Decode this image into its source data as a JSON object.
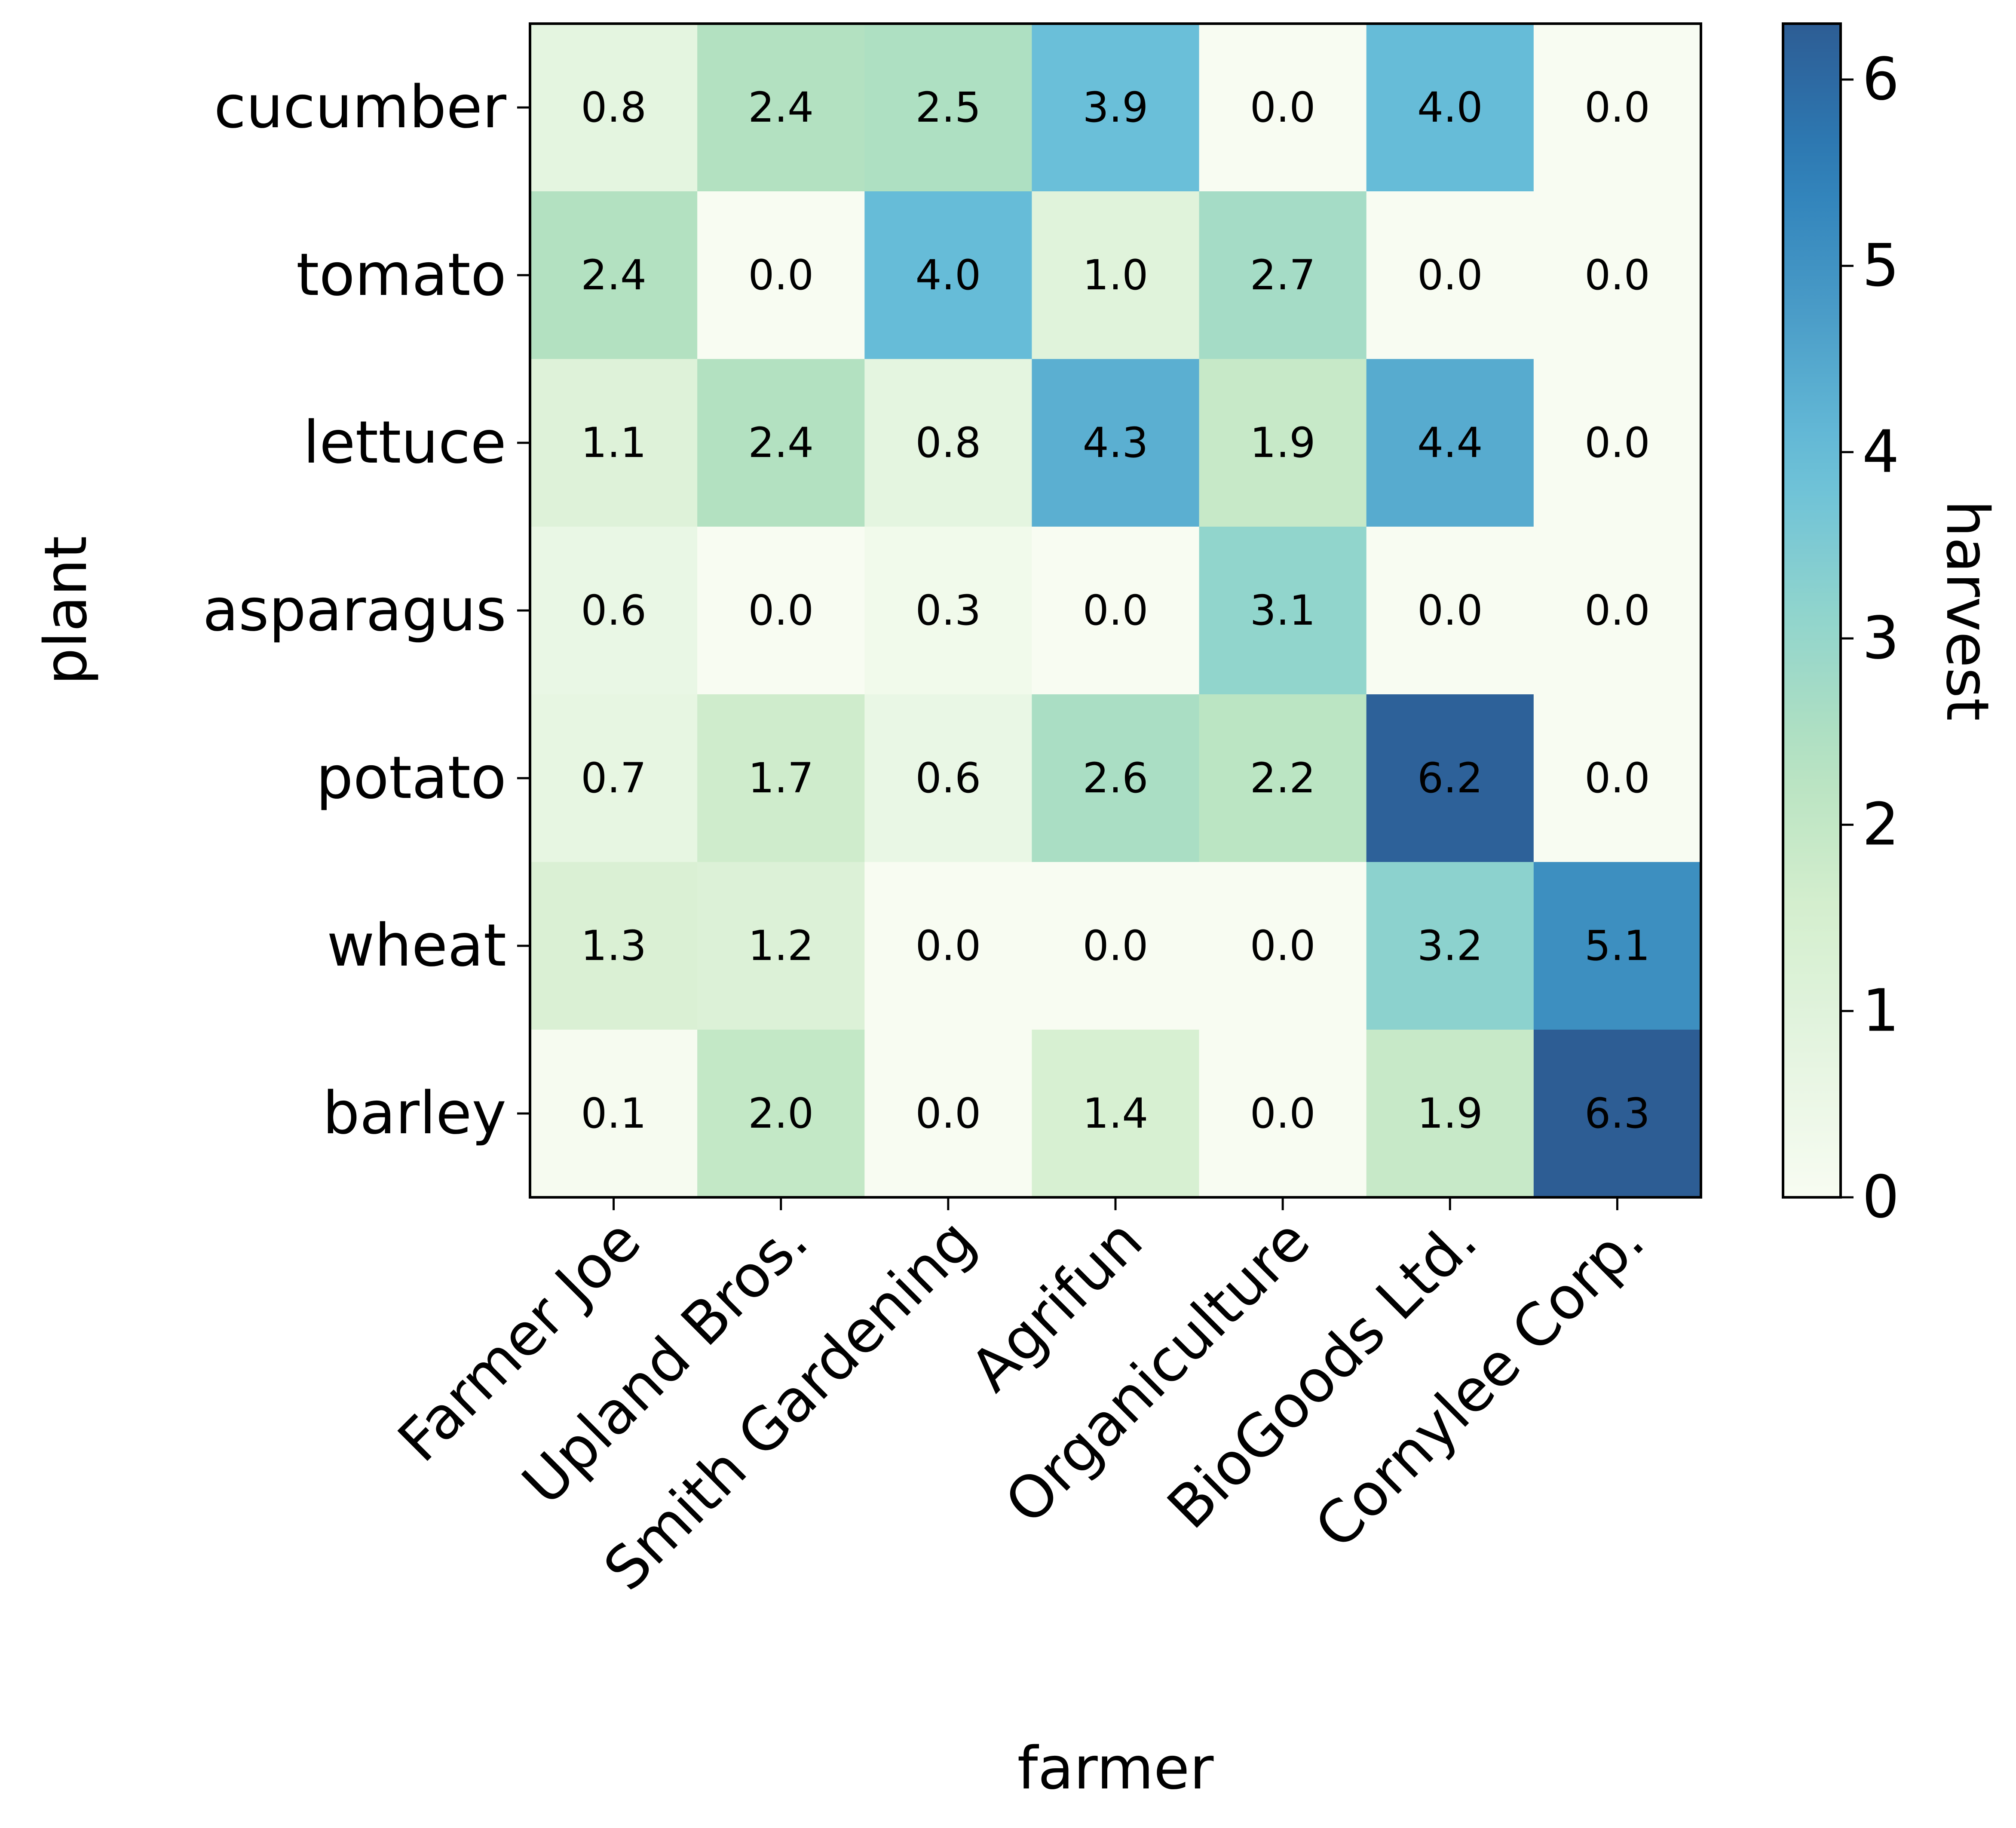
{
  "chart_data": {
    "type": "heatmap",
    "title": "",
    "xlabel": "farmer",
    "ylabel": "plant",
    "x_categories": [
      "Farmer Joe",
      "Upland Bros.",
      "Smith Gardening",
      "Agrifun",
      "Organiculture",
      "BioGoods Ltd.",
      "Cornylee Corp."
    ],
    "y_categories": [
      "cucumber",
      "tomato",
      "lettuce",
      "asparagus",
      "potato",
      "wheat",
      "barley"
    ],
    "values": [
      [
        0.8,
        2.4,
        2.5,
        3.9,
        0.0,
        4.0,
        0.0
      ],
      [
        2.4,
        0.0,
        4.0,
        1.0,
        2.7,
        0.0,
        0.0
      ],
      [
        1.1,
        2.4,
        0.8,
        4.3,
        1.9,
        4.4,
        0.0
      ],
      [
        0.6,
        0.0,
        0.3,
        0.0,
        3.1,
        0.0,
        0.0
      ],
      [
        0.7,
        1.7,
        0.6,
        2.6,
        2.2,
        6.2,
        0.0
      ],
      [
        1.3,
        1.2,
        0.0,
        0.0,
        0.0,
        3.2,
        5.1
      ],
      [
        0.1,
        2.0,
        0.0,
        1.4,
        0.0,
        1.9,
        6.3
      ]
    ],
    "colorbar": {
      "label": "harvest",
      "range": [
        0,
        6.3
      ],
      "ticks": [
        "0",
        "1",
        "2",
        "3",
        "4",
        "5",
        "6"
      ],
      "colormap": "GnBu",
      "low_color": "#f7fcf0",
      "high_color": "#225690"
    },
    "cell_text_color_dark": "#000000",
    "cell_text_color_light": "#ffffff"
  }
}
